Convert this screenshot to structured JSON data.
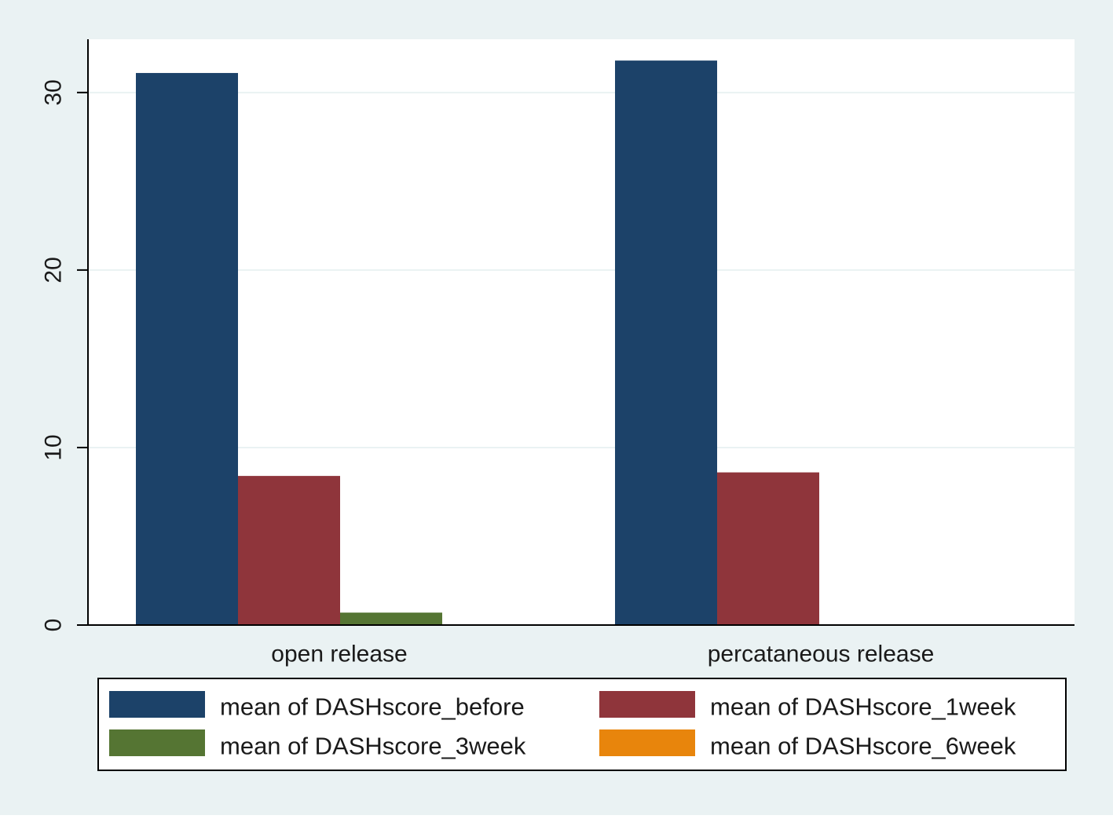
{
  "chart_data": {
    "type": "bar",
    "categories": [
      "open release",
      "percataneous  release"
    ],
    "series": [
      {
        "name": "mean of DASHscore_before",
        "color": "#1c4269",
        "values": [
          31.1,
          31.8
        ]
      },
      {
        "name": "mean of DASHscore_1week",
        "color": "#8f353b",
        "values": [
          8.4,
          8.6
        ]
      },
      {
        "name": "mean of DASHscore_3week",
        "color": "#557533",
        "values": [
          0.7,
          0
        ]
      },
      {
        "name": "mean of DASHscore_6week",
        "color": "#e8850c",
        "values": [
          0,
          0
        ]
      }
    ],
    "title": "",
    "xlabel": "",
    "ylabel": "",
    "ylim": [
      0,
      33
    ],
    "yticks": [
      "0",
      "10",
      "20",
      "30"
    ],
    "grid": true,
    "legend_position": "bottom"
  },
  "colors": {
    "outer_background": "#eaf2f3",
    "plot_background": "#ffffff",
    "gridline": "#eaf2f3",
    "axis": "#000000"
  }
}
